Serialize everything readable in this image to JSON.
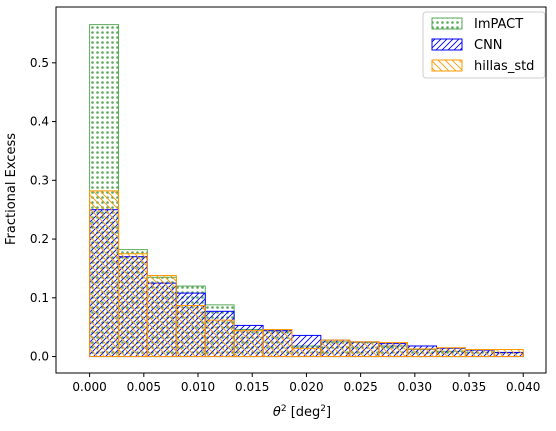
{
  "chart_data": {
    "type": "bar",
    "title": "",
    "xlabel_main": "θ",
    "xlabel_sup": "2",
    "xlabel_unit": " [deg",
    "xlabel_unit_sup": "2",
    "xlabel_close": "]",
    "ylabel": "Fractional Excess",
    "xlim": [
      -0.0031,
      0.0421
    ],
    "ylim": [
      -0.028,
      0.595
    ],
    "xticks": [
      0.0,
      0.005,
      0.01,
      0.015,
      0.02,
      0.025,
      0.03,
      0.035,
      0.04
    ],
    "xtick_labels": [
      "0.000",
      "0.005",
      "0.010",
      "0.015",
      "0.020",
      "0.025",
      "0.030",
      "0.035",
      "0.040"
    ],
    "yticks": [
      0.0,
      0.1,
      0.2,
      0.3,
      0.4,
      0.5
    ],
    "ytick_labels": [
      "0.0",
      "0.1",
      "0.2",
      "0.3",
      "0.4",
      "0.5"
    ],
    "bin_edges": [
      0.0,
      0.00267,
      0.00533,
      0.008,
      0.01067,
      0.01333,
      0.016,
      0.01867,
      0.02133,
      0.024,
      0.02667,
      0.02933,
      0.032,
      0.03467,
      0.03733,
      0.04
    ],
    "legend_position": "top-right",
    "series": [
      {
        "name": "ImPACT",
        "hatch": "dots",
        "color": "#5aaa5a",
        "values": [
          0.565,
          0.182,
          0.135,
          0.12,
          0.088,
          0.046,
          0.044,
          0.018,
          0.025,
          0.024,
          0.018,
          0.012,
          0.009,
          0.011,
          0.007
        ]
      },
      {
        "name": "CNN",
        "hatch": "forward",
        "color": "#0000ff",
        "values": [
          0.25,
          0.17,
          0.125,
          0.108,
          0.077,
          0.053,
          0.044,
          0.036,
          0.028,
          0.025,
          0.022,
          0.018,
          0.014,
          0.011,
          0.007
        ]
      },
      {
        "name": "hillas_std",
        "hatch": "backward",
        "color": "#ff9900",
        "values": [
          0.282,
          0.175,
          0.138,
          0.087,
          0.062,
          0.044,
          0.046,
          0.014,
          0.028,
          0.025,
          0.024,
          0.013,
          0.015,
          0.012,
          0.012
        ]
      }
    ]
  }
}
